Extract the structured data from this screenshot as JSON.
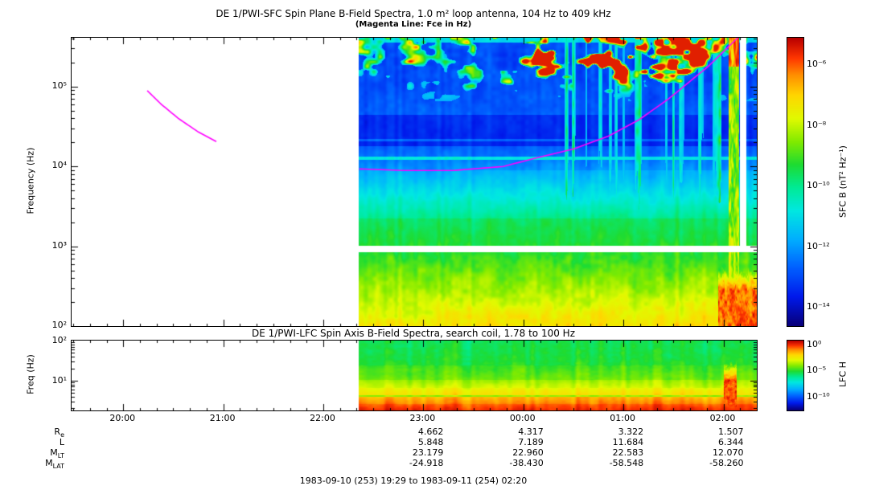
{
  "figure": {
    "background": "#ffffff",
    "footer": "1983-09-10 (253) 19:29 to 1983-09-11 (254) 02:20"
  },
  "chart_data": {
    "type": "heatmap",
    "description": "Two stacked frequency-time spectrograms from DE 1 Plasma Wave Instrument with rainbow intensity colorbars and magenta electron cyclotron frequency (Fce) overlay",
    "time_axis": {
      "start": "19:29",
      "end": "02:20",
      "start_hour": 19.4833,
      "end_hour": 26.3333,
      "data_start_hour": 22.35,
      "ticks": [
        {
          "label": "20:00",
          "hour": 20.0
        },
        {
          "label": "21:00",
          "hour": 21.0
        },
        {
          "label": "22:00",
          "hour": 22.0
        },
        {
          "label": "23:00",
          "hour": 23.0
        },
        {
          "label": "00:00",
          "hour": 24.0
        },
        {
          "label": "01:00",
          "hour": 25.0
        },
        {
          "label": "02:00",
          "hour": 26.0
        }
      ]
    },
    "panels": [
      {
        "id": "sfc",
        "title": "DE 1/PWI-SFC  Spin Plane B-Field Spectra, 1.0 m² loop antenna, 104 Hz to 409 kHz",
        "subtitle": "(Magenta Line: Fce in Hz)",
        "ylabel": "Frequency (Hz)",
        "freq_range_hz": [
          100,
          409000
        ],
        "yticks": [
          {
            "label": "10⁵",
            "lf": 5
          },
          {
            "label": "10⁴",
            "lf": 4
          },
          {
            "label": "10³",
            "lf": 3
          },
          {
            "label": "10²",
            "lf": 2
          }
        ],
        "colorbar": {
          "label": "SFC B (nT² Hz⁻¹)",
          "range_log": [
            -5.1,
            -14.6
          ],
          "ticks": [
            {
              "label": "10⁻⁶",
              "log": -6
            },
            {
              "label": "10⁻⁸",
              "log": -8
            },
            {
              "label": "10⁻¹⁰",
              "log": -10
            },
            {
              "label": "10⁻¹²",
              "log": -12
            },
            {
              "label": "10⁻¹⁴",
              "log": -14
            }
          ]
        },
        "bands": [
          {
            "lf": [
              2.0,
              2.93
            ],
            "v": [
              0.78,
              0.56
            ],
            "noise": 0.05
          },
          {
            "lf": [
              2.93,
              3.01
            ],
            "v": "gap"
          },
          {
            "lf": [
              3.01,
              3.35
            ],
            "v": [
              0.56,
              0.52
            ],
            "noise": 0.03
          },
          {
            "lf": [
              3.35,
              3.95
            ],
            "v": [
              0.49,
              0.3
            ],
            "noise": 0.03
          },
          {
            "lf": [
              3.95,
              4.25
            ],
            "v": [
              0.27,
              0.2
            ],
            "noise": 0.03
          },
          {
            "lf": [
              4.25,
              4.65
            ],
            "v": [
              0.12,
              0.13
            ],
            "noise": 0.025
          },
          {
            "lf": [
              4.65,
              5.05
            ],
            "v": [
              0.2,
              0.17
            ],
            "noise": 0.035
          },
          {
            "lf": [
              5.05,
              5.615
            ],
            "v": [
              0.17,
              0.18
            ],
            "noise": 0.045
          }
        ],
        "features": [
          {
            "type": "gap_column",
            "t": [
              26.165,
              26.225
            ],
            "lf_min": 3.01
          },
          {
            "type": "col_mod",
            "scale": 26,
            "dv": 0.03
          },
          {
            "type": "hline",
            "lf": 4.1,
            "hw": 0.022,
            "dv": 0.17
          },
          {
            "type": "hline",
            "lf": 4.33,
            "hw": 0.013,
            "dv": 0.09
          },
          {
            "type": "hline",
            "lf": 5.585,
            "hw": 0.03,
            "dv": 0.2
          },
          {
            "type": "patch_field",
            "lf_min": 4.82,
            "cov_ramp": 0.45,
            "st": 5.2,
            "sf": 6.0,
            "th": 0.66,
            "gain": 1.9,
            "v_base": 0.3,
            "amp": [
              [
                22.35,
                0.5
              ],
              [
                23.3,
                0.6
              ],
              [
                23.8,
                0.85
              ],
              [
                24.3,
                1.0
              ],
              [
                25.5,
                1.0
              ],
              [
                25.9,
                0.75
              ],
              [
                26.33,
                0.6
              ]
            ]
          },
          {
            "type": "streaks",
            "t": [
              24.35,
              26.0
            ],
            "lf_min": 3.4,
            "scale": 30,
            "th": 0.6,
            "gain": 0.45
          },
          {
            "type": "column",
            "t": [
              26.05,
              26.16
            ],
            "lf_min": 2.0,
            "v_base": 0.48,
            "v_noise": 0.35,
            "top": [
              5.25,
              0.22
            ]
          },
          {
            "type": "blob",
            "t": [
              25.95,
              26.34
            ],
            "lf_max": 2.8,
            "lf_core": 2.45,
            "falloff": 1.2,
            "v_base": 0.9,
            "v_noise": 0.1
          }
        ],
        "fce_line": {
          "color": "#ff00ff",
          "segments": [
            [
              [
                20.24,
                89000
              ],
              [
                20.38,
                60000
              ],
              [
                20.55,
                40000
              ],
              [
                20.75,
                27000
              ],
              [
                20.93,
                20500
              ]
            ],
            [
              [
                22.36,
                9300
              ],
              [
                22.8,
                8900
              ],
              [
                23.3,
                8900
              ],
              [
                23.8,
                10000
              ],
              [
                24.1,
                12500
              ],
              [
                24.5,
                16500
              ],
              [
                24.85,
                24000
              ],
              [
                25.15,
                38000
              ],
              [
                25.45,
                70000
              ],
              [
                25.85,
                180000
              ],
              [
                26.16,
                430000
              ]
            ]
          ]
        }
      },
      {
        "id": "lfc",
        "title": "DE 1/PWI-LFC  Spin Axis B-Field Spectra, search coil, 1.78 to 100 Hz",
        "ylabel": "Freq (Hz)",
        "freq_range_hz": [
          1.78,
          100
        ],
        "yticks": [
          {
            "label": "10²",
            "lf": 2
          },
          {
            "label": "10¹",
            "lf": 1
          }
        ],
        "colorbar": {
          "label": "LFC H",
          "range_log": [
            0.9,
            -12.5
          ],
          "ticks": [
            {
              "label": "10⁰",
              "log": 0
            },
            {
              "label": "10⁻⁵",
              "log": -5
            },
            {
              "label": "10⁻¹⁰",
              "log": -10
            }
          ]
        },
        "bands": [
          {
            "lf": [
              0.25,
              0.42
            ],
            "v": [
              0.95,
              0.9
            ],
            "noise": 0.02
          },
          {
            "lf": [
              0.42,
              0.6
            ],
            "v": [
              0.88,
              0.83
            ],
            "noise": 0.02
          },
          {
            "lf": [
              0.6,
              0.64
            ],
            "v": [
              0.66,
              0.66
            ],
            "noise": 0.01
          },
          {
            "lf": [
              0.64,
              0.82
            ],
            "v": [
              0.78,
              0.73
            ],
            "noise": 0.02
          },
          {
            "lf": [
              0.82,
              1.02
            ],
            "v": [
              0.71,
              0.66
            ],
            "noise": 0.02
          },
          {
            "lf": [
              1.02,
              1.38
            ],
            "v": [
              0.63,
              0.58
            ],
            "noise": 0.025
          },
          {
            "lf": [
              1.38,
              2.0
            ],
            "v": [
              0.56,
              0.53
            ],
            "noise": 0.03
          }
        ],
        "features": [
          {
            "type": "col_mod",
            "scale": 22,
            "dv": 0.045
          },
          {
            "type": "blob",
            "t": [
              26.0,
              26.13
            ],
            "lf_max": 1.75,
            "lf_core": 1.0,
            "falloff": 0.8,
            "v_base": 0.92,
            "v_noise": 0.08
          }
        ]
      }
    ],
    "ephemeris": {
      "column_hours": [
        23,
        24,
        25,
        26
      ],
      "rows": [
        {
          "main": "R",
          "sub": "e",
          "values": [
            "4.662",
            "4.317",
            "3.322",
            "1.507"
          ]
        },
        {
          "main": "L",
          "sub": "",
          "values": [
            "5.848",
            "7.189",
            "11.684",
            "6.344"
          ]
        },
        {
          "main": "M",
          "sub": "LT",
          "values": [
            "23.179",
            "22.960",
            "22.583",
            "12.070"
          ]
        },
        {
          "main": "M",
          "sub": "LAT",
          "values": [
            "-24.918",
            "-38.430",
            "-58.548",
            "-58.260"
          ]
        }
      ]
    },
    "colors": {
      "fce_line": "#ff00ff",
      "axis": "#000000",
      "colormap_low": "#08007a",
      "colormap_high": "#b90000"
    }
  }
}
